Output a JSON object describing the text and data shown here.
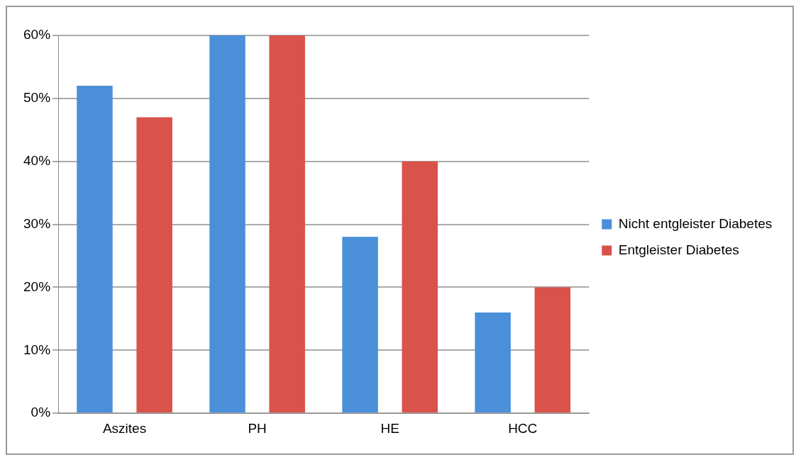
{
  "chart_data": {
    "type": "bar",
    "categories": [
      "Aszites",
      "PH",
      "HE",
      "HCC"
    ],
    "series": [
      {
        "name": "Nicht entgleister Diabetes",
        "color": "#4a8fd8",
        "values": [
          52,
          60,
          28,
          16
        ]
      },
      {
        "name": "Entgleister Diabetes",
        "color": "#d9534a",
        "values": [
          47,
          60,
          40,
          20
        ]
      }
    ],
    "ylim": [
      0,
      60
    ],
    "yticks": [
      {
        "value": 0,
        "label": "0%"
      },
      {
        "value": 10,
        "label": "10%"
      },
      {
        "value": 20,
        "label": "20%"
      },
      {
        "value": 30,
        "label": "30%"
      },
      {
        "value": 40,
        "label": "40%"
      },
      {
        "value": 50,
        "label": "50%"
      },
      {
        "value": 60,
        "label": "60%"
      }
    ],
    "grid": "y",
    "legend": "right"
  }
}
